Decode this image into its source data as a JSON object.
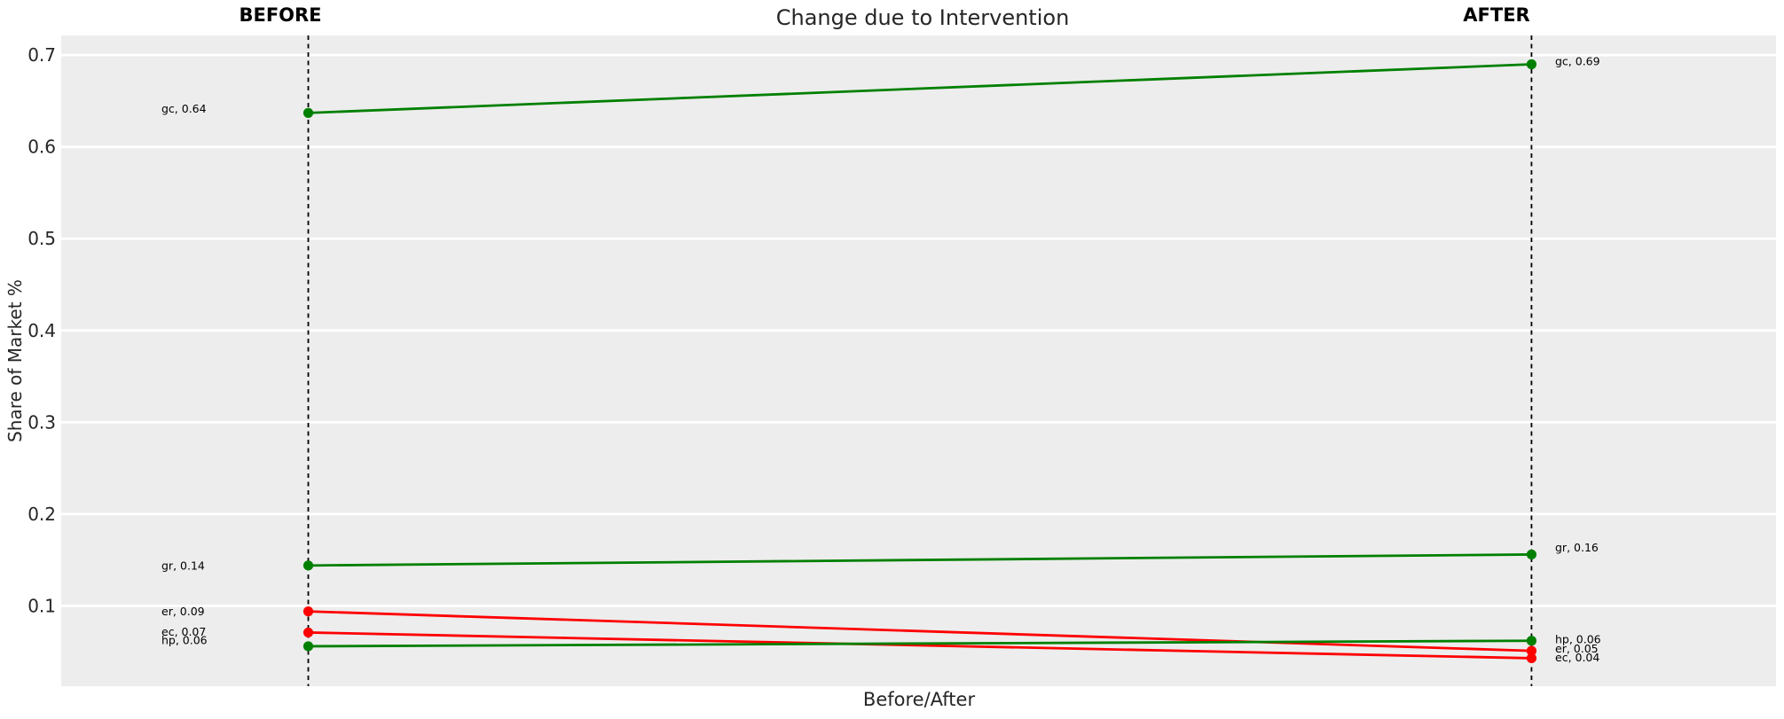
{
  "chart_data": {
    "type": "line",
    "variant": "slope-chart",
    "title": "Change due to Intervention",
    "xlabel": "Before/After",
    "ylabel": "Share of Market %",
    "column_headers": {
      "before": "BEFORE",
      "after": "AFTER"
    },
    "x_categories": [
      "BEFORE",
      "AFTER"
    ],
    "yticks": [
      "0.1",
      "0.2",
      "0.3",
      "0.4",
      "0.5",
      "0.6",
      "0.7"
    ],
    "ylim": [
      0.013,
      0.72
    ],
    "grid": "horizontal-white-lines-on-gray",
    "legend": "none",
    "series": [
      {
        "name": "gc",
        "color": "#008000",
        "values": [
          0.637,
          0.69
        ],
        "before_label": "gc, 0.64",
        "after_label": "gc, 0.69"
      },
      {
        "name": "gr",
        "color": "#008000",
        "values": [
          0.144,
          0.156
        ],
        "before_label": "gr, 0.14",
        "after_label": "gr, 0.16"
      },
      {
        "name": "er",
        "color": "#ff0000",
        "values": [
          0.094,
          0.051
        ],
        "before_label": "er, 0.09",
        "after_label": "er, 0.05"
      },
      {
        "name": "ec",
        "color": "#ff0000",
        "values": [
          0.071,
          0.043
        ],
        "before_label": "ec, 0.07",
        "after_label": "ec, 0.04"
      },
      {
        "name": "hp",
        "color": "#008000",
        "values": [
          0.056,
          0.062
        ],
        "before_label": "hp, 0.06",
        "after_label": "hp, 0.06"
      }
    ],
    "colors": {
      "increase": "#008000",
      "decrease": "#ff0000",
      "plot_bg": "#ededed",
      "grid": "#ffffff",
      "guide_line": "#000000",
      "tick_text": "#262626",
      "label_text": "#000000"
    },
    "label_offsets": {
      "before": {
        "gc": -5,
        "gr": 0,
        "er": 0,
        "ec": -1,
        "hp": -7
      },
      "after": {
        "gc": -3.5,
        "gr": -8,
        "er": -2.5,
        "ec": -1,
        "hp": -1.5
      }
    }
  }
}
